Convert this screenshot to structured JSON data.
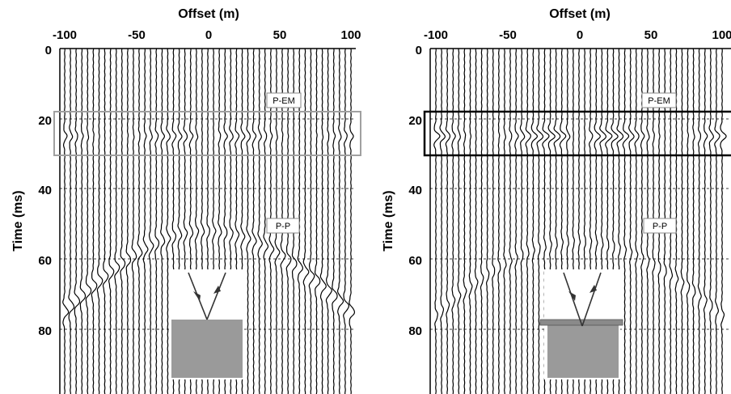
{
  "chart_data": [
    {
      "type": "line",
      "panel": "left",
      "xlabel": "Offset (m)",
      "ylabel": "Time (ms)",
      "xlim": [
        -100,
        100
      ],
      "ylim": [
        100,
        0
      ],
      "x_ticks": [
        -100,
        -50,
        0,
        50,
        100
      ],
      "x_tick_labels": [
        "-100",
        "-50",
        "0",
        "50",
        "100"
      ],
      "y_ticks": [
        0,
        20,
        40,
        60,
        80
      ],
      "y_tick_labels": [
        "0",
        "20",
        "40",
        "60",
        "80"
      ],
      "grid": "dashed horizontal at 20 ms intervals",
      "trace_spacing_m": 4,
      "events": [
        {
          "name": "P-EM",
          "shape": "flat",
          "time_ms": 25,
          "amplitude": "weak"
        },
        {
          "name": "P-P",
          "shape": "hyperbolic",
          "apex_time_ms": 52,
          "edge_time_ms": 75,
          "amplitude": "strong"
        }
      ],
      "annotations": [
        "P-EM",
        "P-P"
      ],
      "highlight_window_ms": [
        18,
        30
      ],
      "highlight_color": "#a0a0a0",
      "inset": "incident and reflected ray at a gray half-space interface"
    },
    {
      "type": "line",
      "panel": "right",
      "xlabel": "Offset (m)",
      "ylabel": "Time (ms)",
      "xlim": [
        -100,
        100
      ],
      "ylim": [
        100,
        0
      ],
      "x_ticks": [
        -100,
        -50,
        0,
        50,
        100
      ],
      "x_tick_labels": [
        "-100",
        "-50",
        "0",
        "50",
        "100"
      ],
      "y_ticks": [
        0,
        20,
        40,
        60,
        80
      ],
      "y_tick_labels": [
        "0",
        "20",
        "40",
        "60",
        "80"
      ],
      "grid": "dashed horizontal at 20 ms intervals",
      "trace_spacing_m": 4,
      "events": [
        {
          "name": "P-EM",
          "shape": "flat",
          "time_ms": 25,
          "amplitude": "strong"
        },
        {
          "name": "P-P",
          "shape": "hyperbolic",
          "apex_time_ms": 55,
          "edge_time_ms": 76,
          "amplitude": "weak"
        }
      ],
      "annotations": [
        "P-EM",
        "P-P"
      ],
      "highlight_window_ms": [
        18,
        30
      ],
      "highlight_color": "#000000",
      "inset": "incident and reflected ray at a thin layer over a gray half-space"
    }
  ]
}
